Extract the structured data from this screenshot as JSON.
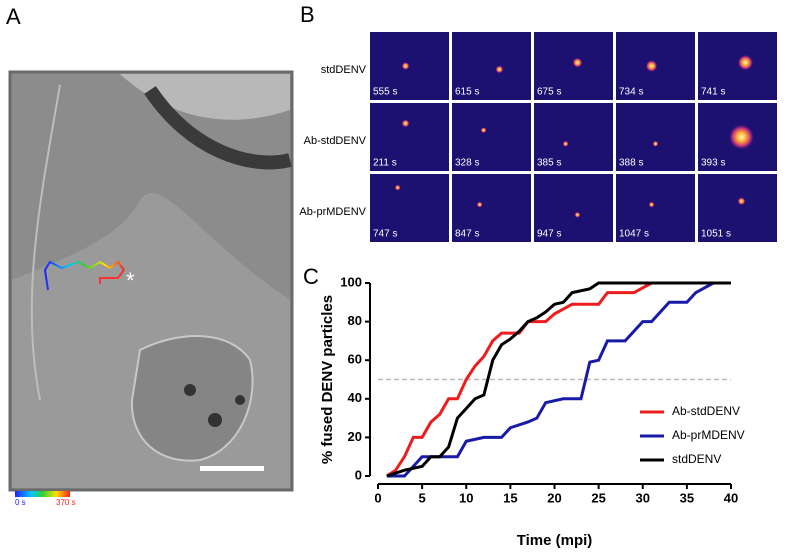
{
  "panels": {
    "a": {
      "label": "A",
      "colorbar": {
        "start": "0 s",
        "end": "370 s"
      }
    },
    "b": {
      "label": "B",
      "rows": [
        {
          "name": "stdDENV",
          "times": [
            "555 s",
            "615 s",
            "675 s",
            "734 s",
            "741 s"
          ]
        },
        {
          "name": "Ab-stdDENV",
          "times": [
            "211 s",
            "328 s",
            "385 s",
            "388 s",
            "393 s"
          ]
        },
        {
          "name": "Ab-prMDENV",
          "times": [
            "747 s",
            "847 s",
            "947 s",
            "1047 s",
            "1051 s"
          ]
        }
      ]
    },
    "c": {
      "label": "C"
    }
  },
  "chart_data": {
    "type": "line",
    "x_label": "Time (mpi)",
    "y_label": "% fused DENV particles",
    "xlim": [
      0,
      40
    ],
    "xticks": [
      0,
      5,
      10,
      15,
      20,
      25,
      30,
      35,
      40
    ],
    "ylim": [
      0,
      100
    ],
    "yticks": [
      0,
      20,
      40,
      60,
      80,
      100
    ],
    "reference_line": 50,
    "legend": "lower right",
    "series": [
      {
        "name": "Ab-stdDENV",
        "color": "#ee1c1c",
        "x": [
          1,
          2,
          3,
          4,
          5,
          6,
          7,
          8,
          9,
          10,
          11,
          12,
          13,
          14,
          16,
          17,
          19,
          20,
          22,
          25,
          26,
          29,
          31,
          40
        ],
        "values": [
          0,
          3,
          10,
          20,
          20,
          28,
          32,
          40,
          40,
          50,
          57,
          62,
          70,
          74,
          74,
          80,
          80,
          84,
          89,
          89,
          95,
          95,
          100,
          100
        ]
      },
      {
        "name": "Ab-prMDENV",
        "color": "#1a1aa8",
        "x": [
          1,
          3,
          5,
          8,
          9,
          10,
          12,
          14,
          15,
          17,
          18,
          19,
          21,
          23,
          24,
          25,
          26,
          28,
          30,
          31,
          33,
          35,
          36,
          38,
          40
        ],
        "values": [
          0,
          0,
          10,
          10,
          10,
          18,
          20,
          20,
          25,
          28,
          30,
          38,
          40,
          40,
          59,
          60,
          70,
          70,
          80,
          80,
          90,
          90,
          95,
          100,
          100
        ]
      },
      {
        "name": "stdDENV",
        "color": "#000000",
        "x": [
          1,
          3,
          5,
          6,
          7,
          8,
          9,
          10,
          11,
          12,
          13,
          14,
          15,
          16,
          17,
          18,
          19,
          20,
          21,
          22,
          24,
          25,
          40
        ],
        "values": [
          0,
          3,
          5,
          10,
          10,
          15,
          30,
          35,
          40,
          42,
          60,
          68,
          71,
          75,
          80,
          82,
          85,
          89,
          90,
          95,
          97,
          100,
          100
        ]
      }
    ]
  }
}
